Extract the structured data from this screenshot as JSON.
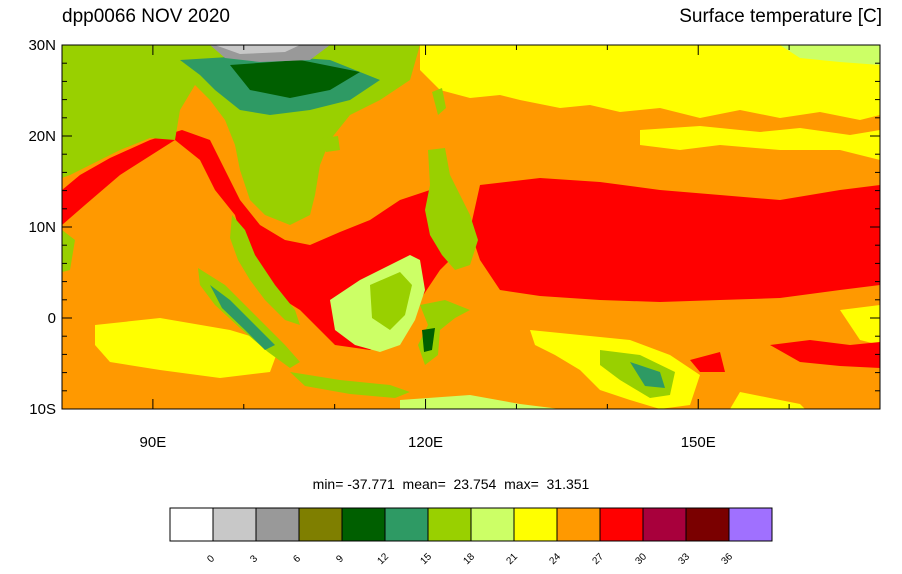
{
  "titles": {
    "left": "dpp0066 NOV 2020",
    "right": "Surface temperature [C]"
  },
  "map": {
    "projection": "cylindrical equidistant",
    "region": "Maritime Continent / Western Pacific",
    "lon_range": [
      80,
      170
    ],
    "lat_range": [
      -10,
      30
    ],
    "lat_ticks": [
      {
        "value": 30,
        "label": "30N"
      },
      {
        "value": 20,
        "label": "20N"
      },
      {
        "value": 10,
        "label": "10N"
      },
      {
        "value": 0,
        "label": "0"
      },
      {
        "value": -10,
        "label": "10S"
      }
    ],
    "lon_ticks": [
      {
        "value": 90,
        "label": "90E"
      },
      {
        "value": 120,
        "label": "120E"
      },
      {
        "value": 150,
        "label": "150E"
      }
    ]
  },
  "stats": {
    "text": "min= -37.771  mean=  23.754  max=  31.351"
  },
  "colorbar": {
    "colors": [
      "#ffffff",
      "#c8c8c8",
      "#999999",
      "#7f7f00",
      "#005f00",
      "#2e9a64",
      "#99d000",
      "#ccff66",
      "#ffff00",
      "#ff9900",
      "#ff0000",
      "#a8003c",
      "#7a0000",
      "#a070ff"
    ],
    "labels": [
      "0",
      "3",
      "6",
      "9",
      "12",
      "15",
      "18",
      "21",
      "24",
      "27",
      "30",
      "33",
      "36"
    ]
  }
}
